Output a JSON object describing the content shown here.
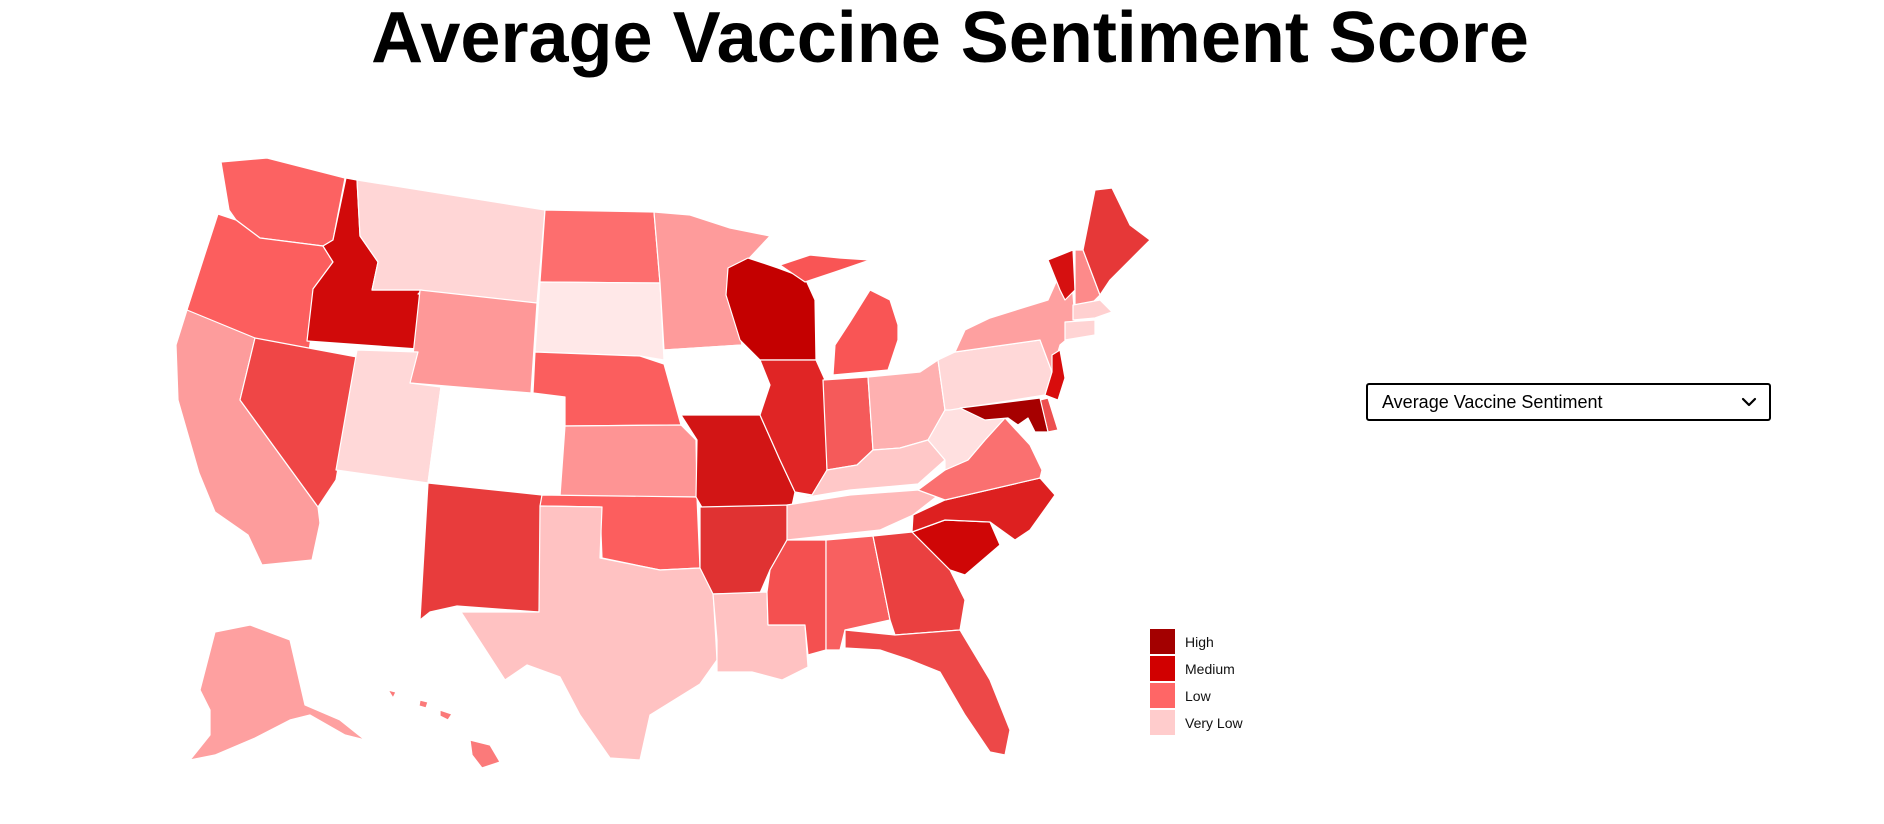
{
  "title": "Average Vaccine Sentiment Score",
  "dropdown": {
    "selected": "Average Vaccine Sentiment",
    "icon": "chevron-down-icon"
  },
  "legend": {
    "items": [
      {
        "label": "High",
        "color": "#a30000"
      },
      {
        "label": "Medium",
        "color": "#d10000"
      },
      {
        "label": "Low",
        "color": "#ff6666"
      },
      {
        "label": "Very Low",
        "color": "#ffcccc"
      }
    ]
  },
  "colors": {
    "state_border": "#ffffff",
    "no_data": "#ffffff"
  },
  "states": [
    {
      "id": "WA",
      "color": "#fc6262"
    },
    {
      "id": "OR",
      "color": "#fc5e5e"
    },
    {
      "id": "CA",
      "color": "#fd9c9c"
    },
    {
      "id": "ID",
      "color": "#d10a0a"
    },
    {
      "id": "NV",
      "color": "#ef4646"
    },
    {
      "id": "MT",
      "color": "#ffd6d6"
    },
    {
      "id": "WY",
      "color": "#fe9898"
    },
    {
      "id": "UT",
      "color": "#ffd8d8"
    },
    {
      "id": "CO",
      "color": "#ffffff"
    },
    {
      "id": "AZ",
      "color": "#ffffff"
    },
    {
      "id": "NM",
      "color": "#e83c3c"
    },
    {
      "id": "ND",
      "color": "#fd6e6e"
    },
    {
      "id": "SD",
      "color": "#ffe8e8"
    },
    {
      "id": "NE",
      "color": "#fb5e5e"
    },
    {
      "id": "KS",
      "color": "#fe9494"
    },
    {
      "id": "OK",
      "color": "#fc5e5e"
    },
    {
      "id": "TX",
      "color": "#ffc2c2"
    },
    {
      "id": "MN",
      "color": "#fe9b9b"
    },
    {
      "id": "IA",
      "color": "#ffffff"
    },
    {
      "id": "MO",
      "color": "#d21515"
    },
    {
      "id": "AR",
      "color": "#e03232"
    },
    {
      "id": "LA",
      "color": "#ffc2c2"
    },
    {
      "id": "WI",
      "color": "#c40000"
    },
    {
      "id": "IL",
      "color": "#e02525"
    },
    {
      "id": "MI",
      "color": "#f95555"
    },
    {
      "id": "IN",
      "color": "#f55a5a"
    },
    {
      "id": "OH",
      "color": "#feb0b0"
    },
    {
      "id": "KY",
      "color": "#ffc8c8"
    },
    {
      "id": "TN",
      "color": "#ffbaba"
    },
    {
      "id": "MS",
      "color": "#f45050"
    },
    {
      "id": "AL",
      "color": "#f86060"
    },
    {
      "id": "GA",
      "color": "#ea4040"
    },
    {
      "id": "FL",
      "color": "#ed4848"
    },
    {
      "id": "SC",
      "color": "#cf0606"
    },
    {
      "id": "NC",
      "color": "#dd2020"
    },
    {
      "id": "VA",
      "color": "#fa7070"
    },
    {
      "id": "WV",
      "color": "#ffe0e0"
    },
    {
      "id": "PA",
      "color": "#ffd8d8"
    },
    {
      "id": "NY",
      "color": "#fea0a0"
    },
    {
      "id": "VT",
      "color": "#d61010"
    },
    {
      "id": "NH",
      "color": "#fd8a8a"
    },
    {
      "id": "ME",
      "color": "#e63838"
    },
    {
      "id": "MA",
      "color": "#ffd0d0"
    },
    {
      "id": "CT",
      "color": "#ffd4d4"
    },
    {
      "id": "NJ",
      "color": "#d80c0c"
    },
    {
      "id": "DE",
      "color": "#ed5050"
    },
    {
      "id": "MD",
      "color": "#a60000"
    },
    {
      "id": "AK",
      "color": "#fea0a0"
    },
    {
      "id": "HI",
      "color": "#fb7a7a"
    }
  ]
}
